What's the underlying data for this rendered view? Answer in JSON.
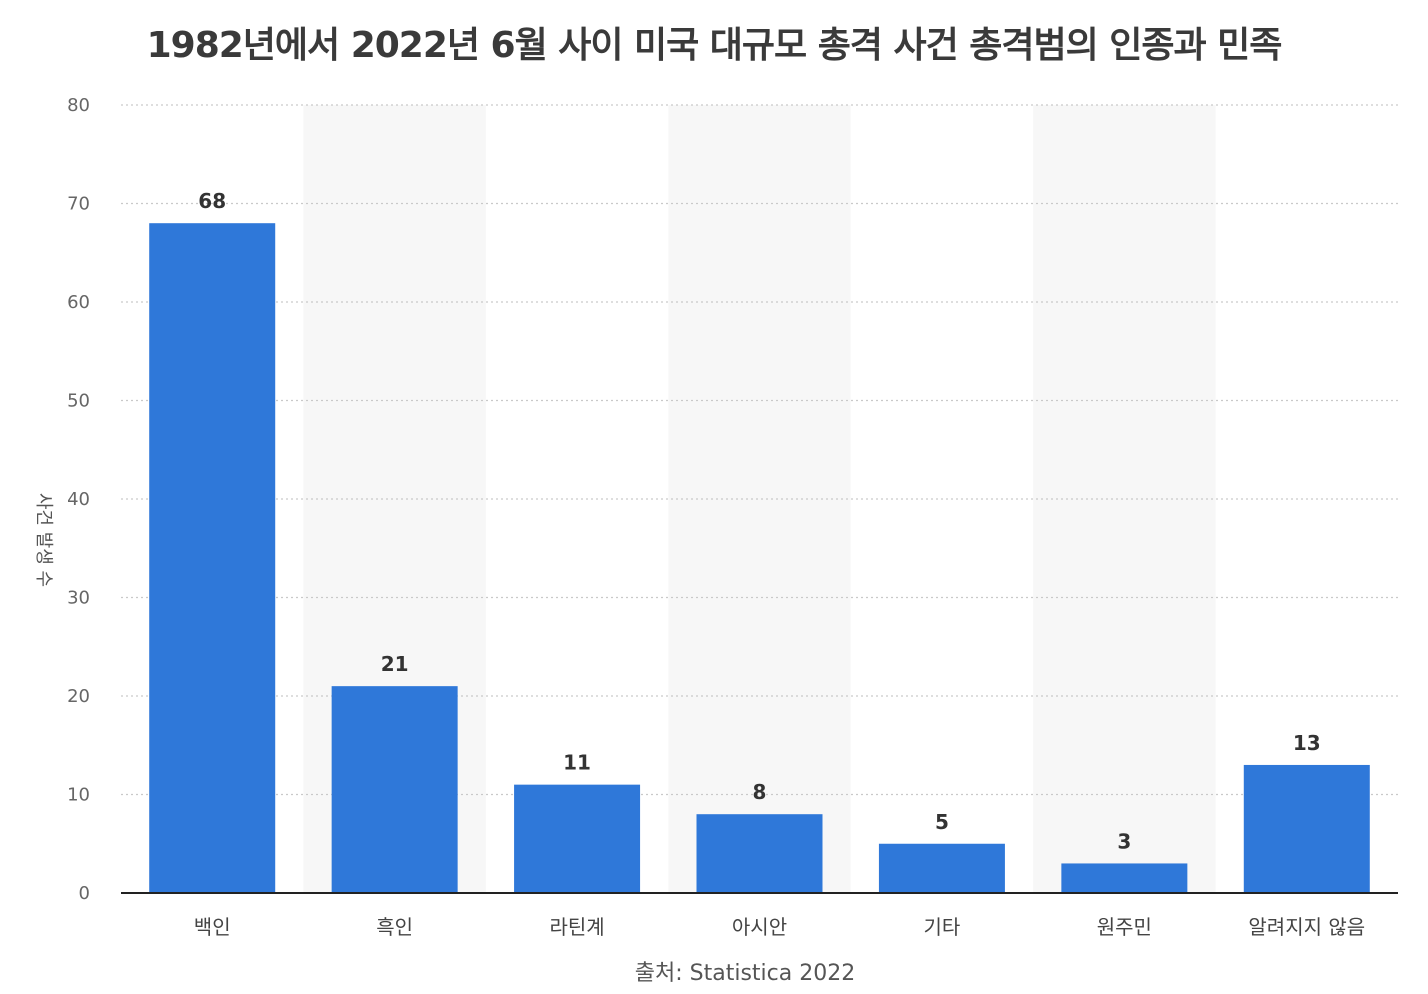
{
  "chart_data": {
    "type": "bar",
    "title": "1982년에서 2022년 6월 사이 미국 대규모 총격 사건 총격범의 인종과 민족",
    "ylabel": "사건 발생 수",
    "xlabel": "",
    "source": "출처: Statistica 2022",
    "ylim": [
      0,
      80
    ],
    "yticks": [
      0,
      10,
      20,
      30,
      40,
      50,
      60,
      70,
      80
    ],
    "categories": [
      "백인",
      "흑인",
      "라틴계",
      "아시안",
      "기타",
      "원주민",
      "알려지지 않음"
    ],
    "values": [
      68,
      21,
      11,
      8,
      5,
      3,
      13
    ],
    "grid": true,
    "bar_color": "#2f78d9"
  }
}
